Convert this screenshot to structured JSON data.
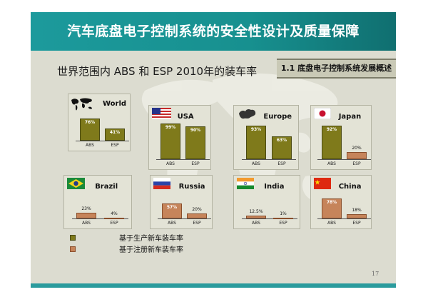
{
  "title": "汽车底盘电子控制系统的安全性设计及质量保障",
  "section_tag": "1.1 底盘电子控制系统发展概述",
  "subtitle": "世界范围内 ABS 和 ESP 2010年的装车率",
  "categories": [
    "ABS",
    "ESP"
  ],
  "colors": {
    "production": "#7f7a1b",
    "registration": "#c6845a",
    "title_bar": "#1c9a9c"
  },
  "chart_data": [
    {
      "type": "bar",
      "title": "World",
      "categories": [
        "ABS",
        "ESP"
      ],
      "values": [
        76,
        41
      ],
      "labels": [
        "76%",
        "41%"
      ],
      "icon": "world-map-icon"
    },
    {
      "type": "bar",
      "title": "USA",
      "categories": [
        "ABS",
        "ESP"
      ],
      "values": [
        99,
        90
      ],
      "labels": [
        "99%",
        "90%"
      ],
      "icon": "usa-flag-icon"
    },
    {
      "type": "bar",
      "title": "Europe",
      "categories": [
        "ABS",
        "ESP"
      ],
      "values": [
        93,
        63
      ],
      "labels": [
        "93%",
        "63%"
      ],
      "icon": "europe-map-icon"
    },
    {
      "type": "bar",
      "title": "Japan",
      "categories": [
        "ABS",
        "ESP"
      ],
      "values": [
        92,
        20
      ],
      "labels": [
        "92%",
        "20%"
      ],
      "icon": "japan-flag-icon"
    },
    {
      "type": "bar",
      "title": "Brazil",
      "categories": [
        "ABS",
        "ESP"
      ],
      "values": [
        23,
        4
      ],
      "labels": [
        "23%",
        "4%"
      ],
      "icon": "brazil-flag-icon"
    },
    {
      "type": "bar",
      "title": "Russia",
      "categories": [
        "ABS",
        "ESP"
      ],
      "values": [
        57,
        20
      ],
      "labels": [
        "57%",
        "20%"
      ],
      "icon": "russia-flag-icon"
    },
    {
      "type": "bar",
      "title": "India",
      "categories": [
        "ABS",
        "ESP"
      ],
      "values": [
        12.5,
        1
      ],
      "labels": [
        "12.5%",
        "1%"
      ],
      "icon": "india-flag-icon"
    },
    {
      "type": "bar",
      "title": "China",
      "categories": [
        "ABS",
        "ESP"
      ],
      "values": [
        78,
        18
      ],
      "labels": [
        "78%",
        "18%"
      ],
      "icon": "china-flag-icon"
    }
  ],
  "legend": [
    {
      "label": "基于生产新车装车率",
      "color": "#7f7a1b"
    },
    {
      "label": "基于注册新车装车率",
      "color": "#c6845a"
    }
  ],
  "page_number": "17"
}
